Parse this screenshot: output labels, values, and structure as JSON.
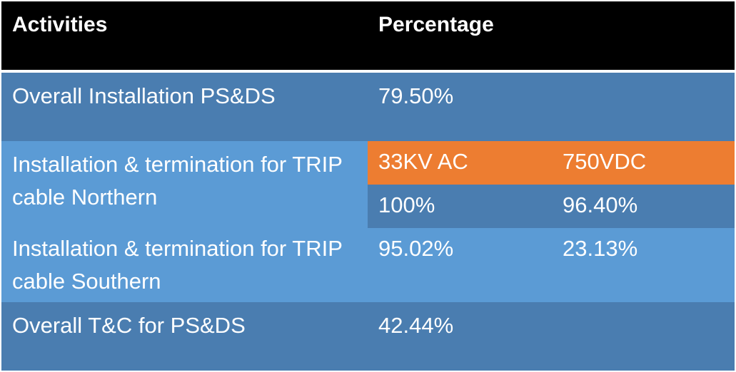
{
  "header": {
    "activities": "Activities",
    "percentage": "Percentage"
  },
  "rows": [
    {
      "activity": "Overall Installation PS&DS",
      "value": "79.50%"
    },
    {
      "activity": "Installation & termination for TRIP cable Northern",
      "sub_labels": [
        "33KV AC",
        "750VDC"
      ],
      "values": [
        "100%",
        "96.40%"
      ]
    },
    {
      "activity": "Installation & termination for TRIP cable Southern",
      "values": [
        "95.02%",
        "23.13%"
      ]
    },
    {
      "activity": "Overall T&C for PS&DS",
      "value": "42.44%"
    }
  ],
  "colors": {
    "header": "#000000",
    "dark_row": "#4a7db0",
    "light_row": "#5b9bd5",
    "accent": "#ed7d31",
    "text": "#ffffff"
  }
}
